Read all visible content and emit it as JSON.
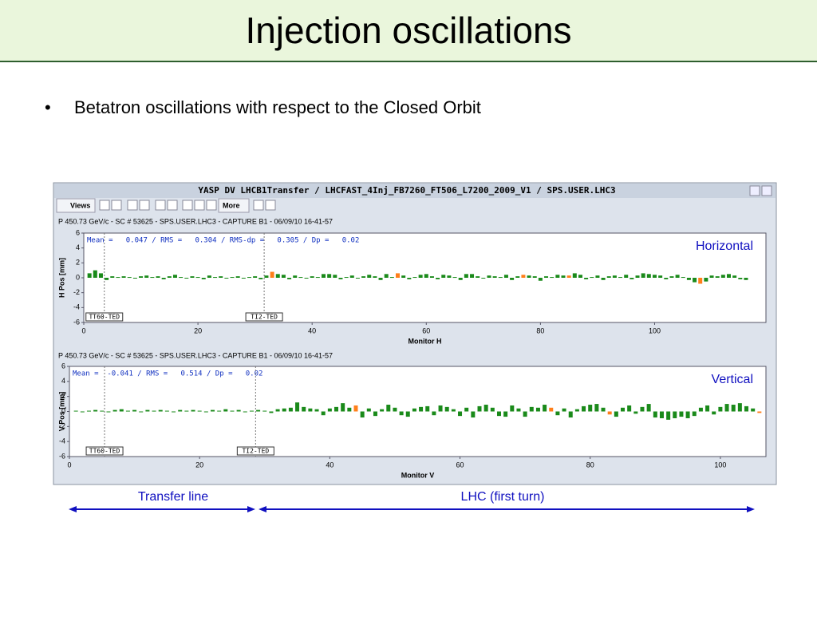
{
  "slide": {
    "title": "Injection oscillations",
    "bullet": "Betatron oscillations with respect to the Closed Orbit"
  },
  "window": {
    "title": "YASP DV LHCB1Transfer / LHCFAST_4Inj_FB7260_FT506_L7200_2009_V1 / SPS.USER.LHC3",
    "views": "Views",
    "more": "More"
  },
  "footer": {
    "transfer_line": "Transfer line",
    "lhc": "LHC (first turn)"
  },
  "chart_data": [
    {
      "type": "bar",
      "header": "P 450.73 GeV/c - SC # 53625 - SPS.USER.LHC3 - CAPTURE B1 - 06/09/10 16-41-57",
      "stats": "Mean =   0.047 / RMS =   0.304 / RMS-dp =   0.305 / Dp =   0.02",
      "label": "Horizontal",
      "ylabel": "H Pos [mm]",
      "xlabel": "Monitor H",
      "xlim": [
        0,
        119.5
      ],
      "xticks": [
        0,
        20,
        40,
        60,
        80,
        100
      ],
      "ylim": [
        -6,
        6
      ],
      "yticks": [
        -6,
        -4,
        -2,
        0,
        2,
        4,
        6
      ],
      "annotations": [
        {
          "text": "TT60-TED",
          "x": 3.6
        },
        {
          "text": "TI2-TED",
          "x": 31.6
        }
      ],
      "x": [
        1,
        2,
        3,
        4,
        5,
        6,
        7,
        8,
        9,
        10,
        11,
        12,
        13,
        14,
        15,
        16,
        17,
        18,
        19,
        20,
        21,
        22,
        23,
        24,
        25,
        26,
        27,
        28,
        29,
        30,
        31,
        32,
        33,
        34,
        35,
        36,
        37,
        38,
        39,
        40,
        41,
        42,
        43,
        44,
        45,
        46,
        47,
        48,
        49,
        50,
        51,
        52,
        53,
        54,
        55,
        56,
        57,
        58,
        59,
        60,
        61,
        62,
        63,
        64,
        65,
        66,
        67,
        68,
        69,
        70,
        71,
        72,
        73,
        74,
        75,
        76,
        77,
        78,
        79,
        80,
        81,
        82,
        83,
        84,
        85,
        86,
        87,
        88,
        89,
        90,
        91,
        92,
        93,
        94,
        95,
        96,
        97,
        98,
        99,
        100,
        101,
        102,
        103,
        104,
        105,
        106,
        107,
        108,
        109,
        110,
        111,
        112,
        113,
        114,
        115,
        116
      ],
      "series": [
        {
          "color": "#1a8a1a",
          "values": [
            0.6,
            1.0,
            0.6,
            -0.3,
            0.2,
            0.1,
            0.2,
            0.1,
            -0.1,
            0.2,
            0.3,
            0.1,
            0.2,
            -0.2,
            0.2,
            0.4,
            0.1,
            -0.1,
            0.2,
            0.1,
            -0.2,
            0.3,
            0.1,
            0.2,
            -0.1,
            0.1,
            0.2,
            -0.1,
            0.1,
            0.2,
            -0.2,
            0.3,
            null,
            0.5,
            0.4,
            -0.2,
            0.3,
            0.1,
            -0.1,
            0.2,
            0.1,
            0.5,
            0.5,
            0.4,
            -0.2,
            0.1,
            0.3,
            -0.1,
            0.2,
            0.4,
            0.2,
            -0.3,
            0.5,
            0.1,
            null,
            0.3,
            -0.2,
            0.1,
            0.4,
            0.5,
            0.2,
            -0.2,
            0.4,
            0.3,
            0.1,
            -0.3,
            0.5,
            0.5,
            0.2,
            -0.1,
            0.3,
            0.2,
            0.1,
            0.4,
            -0.3,
            0.2,
            null,
            0.3,
            0.2,
            -0.4,
            0.2,
            0.1,
            0.4,
            0.3,
            null,
            0.6,
            0.4,
            -0.2,
            0.1,
            0.3,
            -0.3,
            0.2,
            0.3,
            0.1,
            0.4,
            -0.2,
            0.3,
            0.6,
            0.5,
            0.4,
            0.3,
            -0.2,
            0.2,
            0.4,
            0.1,
            -0.3,
            -0.6,
            null,
            -0.5,
            0.3,
            0.2,
            0.4,
            0.5,
            0.3,
            -0.2,
            -0.3
          ]
        },
        {
          "color": "#ff7f1a",
          "values": [
            null,
            null,
            null,
            null,
            null,
            null,
            null,
            null,
            null,
            null,
            null,
            null,
            null,
            null,
            null,
            null,
            null,
            null,
            null,
            null,
            null,
            null,
            null,
            null,
            null,
            null,
            null,
            null,
            null,
            null,
            null,
            null,
            0.8,
            null,
            null,
            null,
            null,
            null,
            null,
            null,
            null,
            null,
            null,
            null,
            null,
            null,
            null,
            null,
            null,
            null,
            null,
            null,
            null,
            null,
            0.6,
            null,
            null,
            null,
            null,
            null,
            null,
            null,
            null,
            null,
            null,
            null,
            null,
            null,
            null,
            null,
            null,
            null,
            null,
            null,
            null,
            null,
            0.4,
            null,
            null,
            null,
            null,
            null,
            null,
            null,
            0.3,
            null,
            null,
            null,
            null,
            null,
            null,
            null,
            null,
            null,
            null,
            null,
            null,
            null,
            null,
            null,
            null,
            null,
            null,
            null,
            null,
            null,
            null,
            -0.8,
            null,
            null,
            null,
            null,
            null,
            null,
            null,
            null
          ]
        }
      ]
    },
    {
      "type": "bar",
      "header": "P 450.73 GeV/c - SC # 53625 - SPS.USER.LHC3 - CAPTURE B1 - 06/09/10 16-41-57",
      "stats": "Mean =  -0.041 / RMS =   0.514 / Dp =   0.02",
      "label": "Vertical",
      "ylabel": "V Pos [mm]",
      "xlabel": "Monitor V",
      "xlim": [
        0,
        107
      ],
      "xticks": [
        0,
        20,
        40,
        60,
        80,
        100
      ],
      "ylim": [
        -6,
        6
      ],
      "yticks": [
        -6,
        -4,
        -2,
        0,
        2,
        4,
        6
      ],
      "annotations": [
        {
          "text": "TT60-TED",
          "x": 5.4
        },
        {
          "text": "TI2-TED",
          "x": 28.6
        }
      ],
      "x": [
        1,
        2,
        3,
        4,
        5,
        6,
        7,
        8,
        9,
        10,
        11,
        12,
        13,
        14,
        15,
        16,
        17,
        18,
        19,
        20,
        21,
        22,
        23,
        24,
        25,
        26,
        27,
        28,
        29,
        30,
        31,
        32,
        33,
        34,
        35,
        36,
        37,
        38,
        39,
        40,
        41,
        42,
        43,
        44,
        45,
        46,
        47,
        48,
        49,
        50,
        51,
        52,
        53,
        54,
        55,
        56,
        57,
        58,
        59,
        60,
        61,
        62,
        63,
        64,
        65,
        66,
        67,
        68,
        69,
        70,
        71,
        72,
        73,
        74,
        75,
        76,
        77,
        78,
        79,
        80,
        81,
        82,
        83,
        84,
        85,
        86,
        87,
        88,
        89,
        90,
        91,
        92,
        93,
        94,
        95,
        96,
        97,
        98,
        99,
        100,
        101,
        102,
        103,
        104,
        105,
        106
      ],
      "series": [
        {
          "color": "#1a8a1a",
          "values": [
            0.1,
            -0.1,
            0.1,
            0.2,
            0.1,
            -0.1,
            0.2,
            0.3,
            0.1,
            0.2,
            -0.1,
            0.2,
            0.1,
            0.2,
            0.1,
            -0.1,
            0.2,
            0.1,
            0.2,
            0.1,
            -0.1,
            0.2,
            0.1,
            0.3,
            0.1,
            0.2,
            -0.1,
            0.1,
            0.2,
            0.1,
            -0.2,
            0.3,
            0.4,
            0.5,
            1.2,
            0.6,
            0.4,
            0.3,
            -0.5,
            0.4,
            0.6,
            1.1,
            0.5,
            null,
            -0.8,
            0.4,
            -0.6,
            0.3,
            0.9,
            0.5,
            -0.5,
            -0.7,
            0.4,
            0.6,
            0.7,
            -0.5,
            0.8,
            0.6,
            0.3,
            -0.6,
            0.5,
            -0.8,
            0.7,
            0.9,
            0.5,
            -0.6,
            -0.7,
            0.8,
            0.4,
            -0.7,
            0.6,
            0.5,
            0.9,
            null,
            -0.5,
            0.4,
            -0.8,
            0.3,
            0.7,
            0.9,
            1.0,
            0.5,
            null,
            -0.7,
            0.5,
            0.8,
            -0.3,
            0.6,
            1.0,
            -0.8,
            -0.9,
            -1.1,
            -0.9,
            -0.7,
            -0.9,
            -0.6,
            0.5,
            0.8,
            -0.4,
            0.6,
            1.0,
            0.9,
            1.1,
            0.7,
            0.4,
            null
          ]
        },
        {
          "color": "#ff7f1a",
          "values": [
            null,
            null,
            null,
            null,
            null,
            null,
            null,
            null,
            null,
            null,
            null,
            null,
            null,
            null,
            null,
            null,
            null,
            null,
            null,
            null,
            null,
            null,
            null,
            null,
            null,
            null,
            null,
            null,
            null,
            null,
            null,
            null,
            null,
            null,
            null,
            null,
            null,
            null,
            null,
            null,
            null,
            null,
            null,
            0.8,
            null,
            null,
            null,
            null,
            null,
            null,
            null,
            null,
            null,
            null,
            null,
            null,
            null,
            null,
            null,
            null,
            null,
            null,
            null,
            null,
            null,
            null,
            null,
            null,
            null,
            null,
            null,
            null,
            null,
            0.5,
            null,
            null,
            null,
            null,
            null,
            null,
            null,
            null,
            -0.4,
            null,
            null,
            null,
            null,
            null,
            null,
            null,
            null,
            null,
            null,
            null,
            null,
            null,
            null,
            null,
            null,
            null,
            null,
            null,
            null,
            null,
            null,
            -0.2
          ]
        }
      ]
    }
  ]
}
